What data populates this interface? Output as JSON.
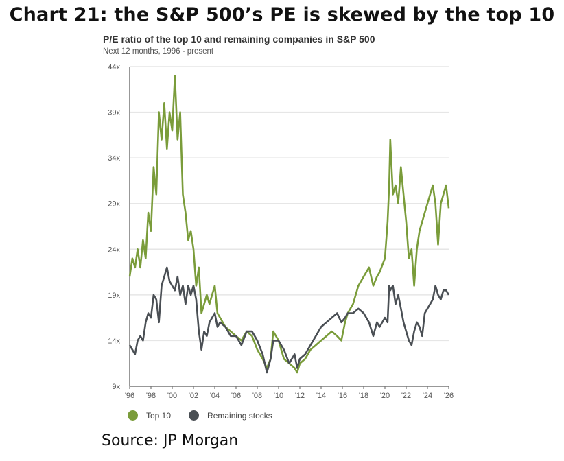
{
  "header": {
    "title": "Chart 21: the S&P 500’s PE is skewed by the top 10"
  },
  "source": "Source: JP Morgan",
  "chart_data": {
    "type": "line",
    "title": "P/E ratio of the top 10 and remaining companies in S&P 500",
    "subtitle": "Next 12 months, 1996 - present",
    "xlabel": "",
    "ylabel": "",
    "xlim": [
      1996,
      2026
    ],
    "ylim": [
      9,
      44
    ],
    "yticks": [
      9,
      14,
      19,
      24,
      29,
      34,
      39,
      44
    ],
    "ytick_labels": [
      "9x",
      "14x",
      "19x",
      "24x",
      "29x",
      "34x",
      "39x",
      "44x"
    ],
    "xticks": [
      1996,
      1998,
      2000,
      2002,
      2004,
      2006,
      2008,
      2010,
      2012,
      2014,
      2016,
      2018,
      2020,
      2022,
      2024,
      2026
    ],
    "xtick_labels": [
      "'96",
      "'98",
      "'00",
      "'02",
      "'04",
      "'06",
      "'08",
      "'10",
      "'12",
      "'14",
      "'16",
      "'18",
      "'20",
      "'22",
      "'24",
      "'26"
    ],
    "grid": true,
    "legend_position": "bottom-left",
    "series": [
      {
        "name": "Top 10",
        "color": "#7a9c3a",
        "x": [
          1996.0,
          1996.25,
          1996.5,
          1996.75,
          1997.0,
          1997.25,
          1997.5,
          1997.75,
          1998.0,
          1998.25,
          1998.5,
          1998.75,
          1999.0,
          1999.25,
          1999.5,
          1999.75,
          2000.0,
          2000.25,
          2000.5,
          2000.75,
          2001.0,
          2001.25,
          2001.5,
          2001.75,
          2002.0,
          2002.25,
          2002.5,
          2002.75,
          2003.0,
          2003.25,
          2003.5,
          2003.75,
          2004.0,
          2004.25,
          2004.5,
          2005.0,
          2005.5,
          2006.0,
          2006.5,
          2007.0,
          2007.5,
          2008.0,
          2008.5,
          2008.9,
          2009.25,
          2009.5,
          2010.0,
          2010.5,
          2011.0,
          2011.5,
          2011.75,
          2012.0,
          2012.5,
          2013.0,
          2013.5,
          2014.0,
          2014.5,
          2015.0,
          2015.5,
          2015.9,
          2016.25,
          2016.5,
          2017.0,
          2017.5,
          2018.0,
          2018.5,
          2018.9,
          2019.25,
          2019.5,
          2020.0,
          2020.25,
          2020.4,
          2020.5,
          2020.75,
          2021.0,
          2021.25,
          2021.5,
          2021.75,
          2022.0,
          2022.25,
          2022.5,
          2022.75,
          2023.0,
          2023.25,
          2023.5,
          2023.75,
          2024.0,
          2024.25,
          2024.5,
          2024.75,
          2025.0,
          2025.25,
          2025.5,
          2025.75,
          2026.0
        ],
        "values": [
          21,
          23,
          22,
          24,
          22,
          25,
          23,
          28,
          26,
          33,
          30,
          39,
          36,
          40,
          35,
          39,
          37,
          43,
          36,
          39,
          30,
          28,
          25,
          26,
          24,
          20,
          22,
          17,
          18,
          19,
          18,
          19,
          20,
          17,
          16.5,
          15.5,
          15,
          14.5,
          14,
          15,
          14.5,
          13,
          12,
          11,
          12,
          15,
          14,
          12,
          11.5,
          11,
          10.5,
          11.5,
          12,
          13,
          13.5,
          14,
          14.5,
          15,
          14.5,
          14,
          16,
          17,
          18,
          20,
          21,
          22,
          20,
          21,
          21.5,
          23,
          27,
          31,
          36,
          30,
          31,
          29,
          33,
          30,
          27,
          23,
          24,
          20,
          24,
          26,
          27,
          28,
          29,
          30,
          31,
          29,
          24.5,
          29,
          30,
          31,
          28.5
        ]
      },
      {
        "name": "Remaining stocks",
        "color": "#4a4f54",
        "x": [
          1996.0,
          1996.25,
          1996.5,
          1996.75,
          1997.0,
          1997.25,
          1997.5,
          1997.75,
          1998.0,
          1998.25,
          1998.5,
          1998.75,
          1999.0,
          1999.25,
          1999.5,
          1999.75,
          2000.0,
          2000.25,
          2000.5,
          2000.75,
          2001.0,
          2001.25,
          2001.5,
          2001.75,
          2002.0,
          2002.25,
          2002.5,
          2002.75,
          2003.0,
          2003.25,
          2003.5,
          2003.75,
          2004.0,
          2004.25,
          2004.5,
          2005.0,
          2005.5,
          2006.0,
          2006.5,
          2007.0,
          2007.5,
          2008.0,
          2008.5,
          2008.9,
          2009.25,
          2009.5,
          2010.0,
          2010.5,
          2011.0,
          2011.5,
          2011.75,
          2012.0,
          2012.5,
          2013.0,
          2013.5,
          2014.0,
          2014.5,
          2015.0,
          2015.5,
          2015.9,
          2016.25,
          2016.5,
          2017.0,
          2017.5,
          2018.0,
          2018.5,
          2018.9,
          2019.25,
          2019.5,
          2020.0,
          2020.25,
          2020.4,
          2020.5,
          2020.75,
          2021.0,
          2021.25,
          2021.5,
          2021.75,
          2022.0,
          2022.25,
          2022.5,
          2022.75,
          2023.0,
          2023.25,
          2023.5,
          2023.75,
          2024.0,
          2024.25,
          2024.5,
          2024.75,
          2025.0,
          2025.25,
          2025.5,
          2025.75,
          2026.0
        ],
        "values": [
          13.5,
          13,
          12.5,
          14,
          14.5,
          14,
          16,
          17,
          16.5,
          19,
          18.5,
          16,
          20,
          21,
          22,
          20.5,
          20,
          19.5,
          21,
          19,
          20,
          18,
          20,
          19,
          20,
          18.5,
          15,
          13,
          15,
          14.5,
          16,
          16.5,
          17,
          15.5,
          16,
          15.5,
          14.5,
          14.5,
          13.5,
          15,
          15,
          14,
          12.5,
          10.5,
          12,
          14,
          14,
          13,
          11.5,
          12.5,
          11,
          12,
          12.5,
          13.5,
          14.5,
          15.5,
          16,
          16.5,
          17,
          16,
          16.5,
          17,
          17,
          17.5,
          17,
          16,
          14.5,
          16,
          15.5,
          16.5,
          16,
          20,
          19.5,
          20,
          18,
          19,
          17.5,
          16,
          15,
          14,
          13.5,
          15,
          16,
          15.5,
          14.5,
          17,
          17.5,
          18,
          18.5,
          20,
          19,
          18.5,
          19.5,
          19.5,
          19
        ]
      }
    ]
  }
}
